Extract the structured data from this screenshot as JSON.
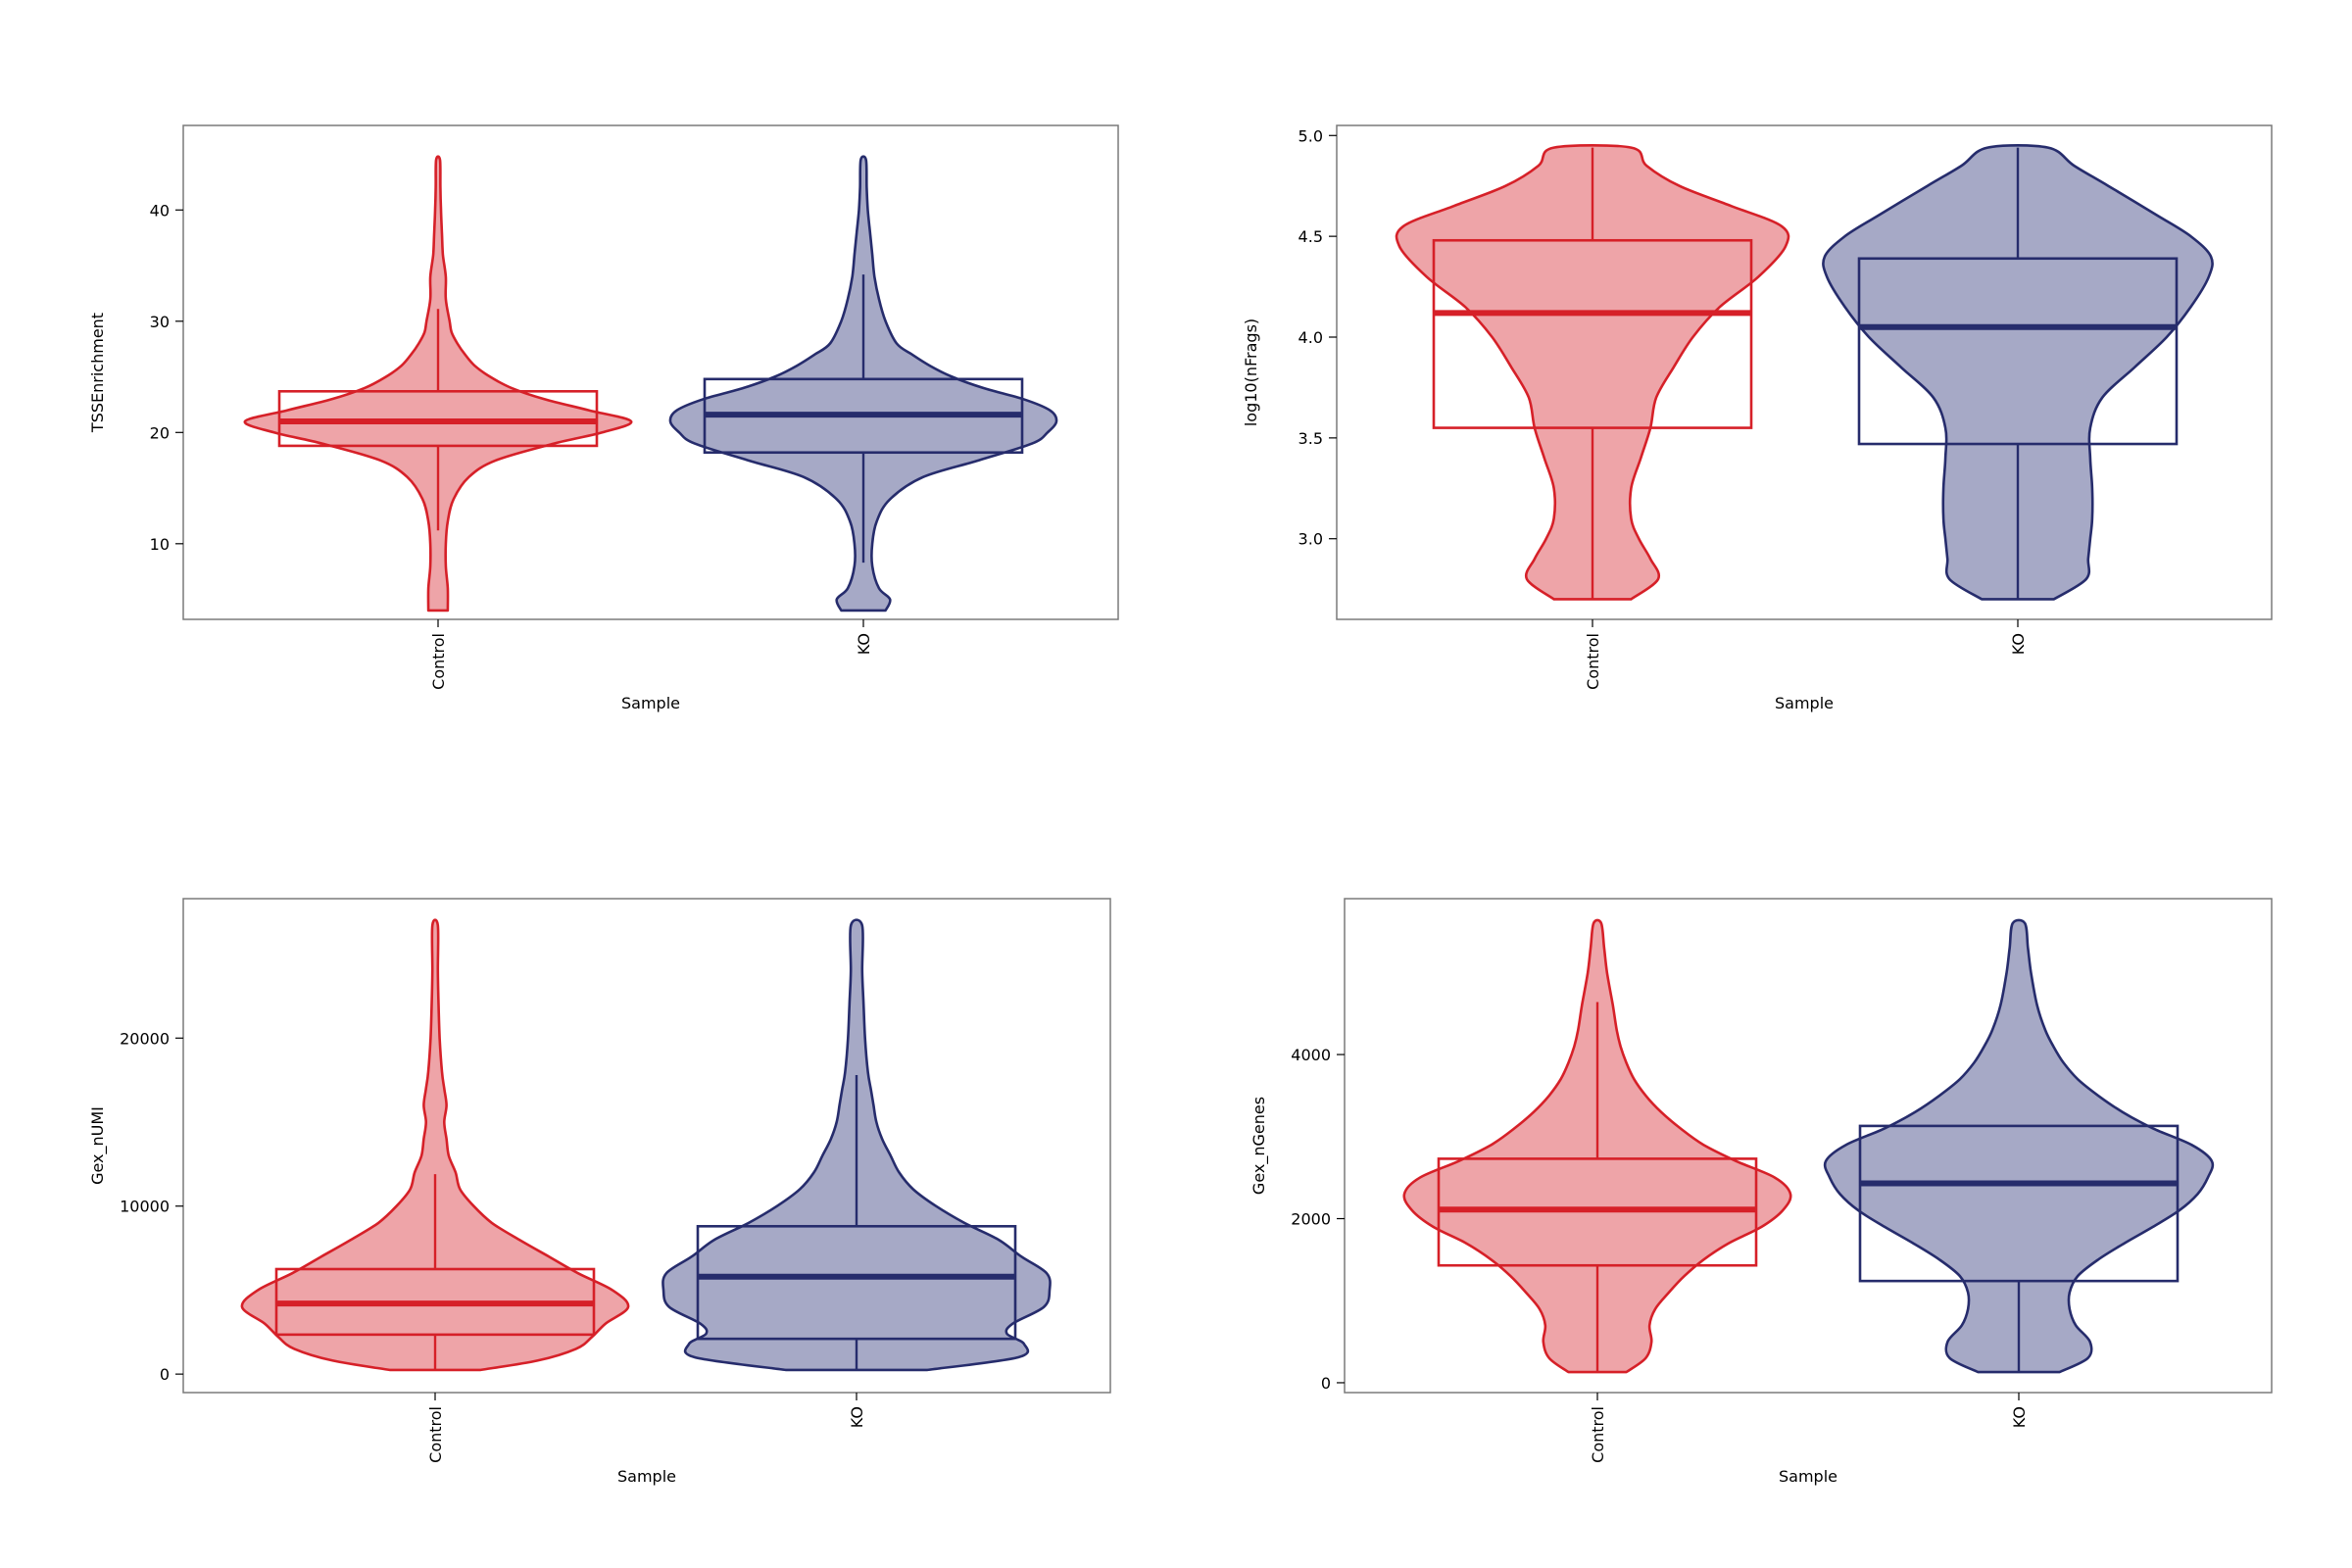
{
  "colors": {
    "Control": {
      "stroke": "#d62028",
      "fill": "#eea4a8"
    },
    "KO": {
      "stroke": "#262c6c",
      "fill": "#a6a9c6"
    },
    "frame": "#7a7a7a",
    "text": "#000000"
  },
  "chart_data": [
    {
      "type": "violin",
      "xlabel": "Sample",
      "ylabel": "TSSEnrichment",
      "categories": [
        "Control",
        "KO"
      ],
      "ylim": [
        3.2,
        47.6
      ],
      "yticks": [
        10,
        20,
        30,
        40
      ],
      "ytick_labels": [
        "10",
        "20",
        "30",
        "40"
      ],
      "grid": false,
      "series": [
        {
          "name": "Control",
          "q1": 18.8,
          "median": 21.0,
          "q3": 23.7,
          "whisker_low": 11.2,
          "whisker_high": 31.1,
          "density": [
            [
              4.0,
              0.05
            ],
            [
              6,
              0.05
            ],
            [
              8,
              0.04
            ],
            [
              10,
              0.04
            ],
            [
              12,
              0.05
            ],
            [
              14,
              0.08
            ],
            [
              16,
              0.16
            ],
            [
              17.5,
              0.3
            ],
            [
              19,
              0.6
            ],
            [
              20,
              0.85
            ],
            [
              21,
              1.0
            ],
            [
              22,
              0.78
            ],
            [
              23,
              0.55
            ],
            [
              24,
              0.38
            ],
            [
              25,
              0.27
            ],
            [
              26,
              0.19
            ],
            [
              27,
              0.14
            ],
            [
              28,
              0.1
            ],
            [
              29,
              0.07
            ],
            [
              30,
              0.06
            ],
            [
              32,
              0.04
            ],
            [
              34,
              0.04
            ],
            [
              36,
              0.025
            ],
            [
              38,
              0.02
            ],
            [
              40,
              0.015
            ],
            [
              42,
              0.012
            ],
            [
              44.5,
              0.01
            ]
          ]
        },
        {
          "name": "KO",
          "q1": 18.2,
          "median": 21.6,
          "q3": 24.8,
          "whisker_low": 8.3,
          "whisker_high": 34.2,
          "density": [
            [
              4.0,
              0.1
            ],
            [
              5,
              0.12
            ],
            [
              6,
              0.07
            ],
            [
              8,
              0.04
            ],
            [
              10,
              0.04
            ],
            [
              12,
              0.06
            ],
            [
              14,
              0.12
            ],
            [
              16,
              0.27
            ],
            [
              17.5,
              0.52
            ],
            [
              19,
              0.76
            ],
            [
              20,
              0.83
            ],
            [
              21,
              0.87
            ],
            [
              22,
              0.84
            ],
            [
              23,
              0.72
            ],
            [
              24,
              0.54
            ],
            [
              25,
              0.4
            ],
            [
              26,
              0.3
            ],
            [
              27,
              0.22
            ],
            [
              28,
              0.15
            ],
            [
              30,
              0.1
            ],
            [
              32,
              0.07
            ],
            [
              34,
              0.05
            ],
            [
              36,
              0.04
            ],
            [
              38,
              0.03
            ],
            [
              40,
              0.02
            ],
            [
              42,
              0.015
            ],
            [
              44.5,
              0.012
            ]
          ]
        }
      ]
    },
    {
      "type": "violin",
      "xlabel": "Sample",
      "ylabel": "log10(nFrags)",
      "categories": [
        "Control",
        "KO"
      ],
      "ylim": [
        2.6,
        5.05
      ],
      "yticks": [
        3.0,
        3.5,
        4.0,
        4.5,
        5.0
      ],
      "ytick_labels": [
        "3.0",
        "3.5",
        "4.0",
        "4.5",
        "5.0"
      ],
      "grid": false,
      "series": [
        {
          "name": "Control",
          "q1": 3.55,
          "median": 4.12,
          "q3": 4.48,
          "whisker_low": 2.7,
          "whisker_high": 4.94,
          "density": [
            [
              2.7,
              0.2
            ],
            [
              2.8,
              0.34
            ],
            [
              2.9,
              0.3
            ],
            [
              3.0,
              0.24
            ],
            [
              3.1,
              0.2
            ],
            [
              3.25,
              0.2
            ],
            [
              3.4,
              0.25
            ],
            [
              3.55,
              0.3
            ],
            [
              3.7,
              0.33
            ],
            [
              3.85,
              0.42
            ],
            [
              4.0,
              0.52
            ],
            [
              4.15,
              0.66
            ],
            [
              4.3,
              0.86
            ],
            [
              4.45,
              1.0
            ],
            [
              4.55,
              0.98
            ],
            [
              4.65,
              0.72
            ],
            [
              4.75,
              0.45
            ],
            [
              4.85,
              0.28
            ],
            [
              4.94,
              0.2
            ]
          ]
        },
        {
          "name": "KO",
          "q1": 3.47,
          "median": 4.05,
          "q3": 4.39,
          "whisker_low": 2.7,
          "whisker_high": 4.94,
          "density": [
            [
              2.7,
              0.18
            ],
            [
              2.8,
              0.34
            ],
            [
              2.9,
              0.35
            ],
            [
              3.0,
              0.36
            ],
            [
              3.1,
              0.37
            ],
            [
              3.25,
              0.37
            ],
            [
              3.4,
              0.36
            ],
            [
              3.55,
              0.36
            ],
            [
              3.7,
              0.42
            ],
            [
              3.85,
              0.58
            ],
            [
              4.0,
              0.74
            ],
            [
              4.15,
              0.86
            ],
            [
              4.3,
              0.95
            ],
            [
              4.4,
              0.96
            ],
            [
              4.5,
              0.86
            ],
            [
              4.6,
              0.7
            ],
            [
              4.75,
              0.45
            ],
            [
              4.85,
              0.28
            ],
            [
              4.94,
              0.15
            ]
          ]
        }
      ]
    },
    {
      "type": "violin",
      "xlabel": "Sample",
      "ylabel": "Gex_nUMI",
      "categories": [
        "Control",
        "KO"
      ],
      "ylim": [
        -1100,
        28300
      ],
      "yticks": [
        0,
        10000,
        20000
      ],
      "ytick_labels": [
        "0",
        "10000",
        "20000"
      ],
      "grid": false,
      "series": [
        {
          "name": "Control",
          "q1": 2350,
          "median": 4200,
          "q3": 6250,
          "whisker_low": 250,
          "whisker_high": 11900,
          "density": [
            [
              250,
              0.2
            ],
            [
              800,
              0.45
            ],
            [
              1500,
              0.62
            ],
            [
              2200,
              0.69
            ],
            [
              3000,
              0.75
            ],
            [
              4000,
              0.85
            ],
            [
              5000,
              0.78
            ],
            [
              6000,
              0.63
            ],
            [
              7000,
              0.5
            ],
            [
              8000,
              0.37
            ],
            [
              9000,
              0.25
            ],
            [
              10000,
              0.17
            ],
            [
              11000,
              0.11
            ],
            [
              12000,
              0.09
            ],
            [
              13000,
              0.06
            ],
            [
              14000,
              0.05
            ],
            [
              15000,
              0.04
            ],
            [
              16000,
              0.05
            ],
            [
              17000,
              0.04
            ],
            [
              18000,
              0.03
            ],
            [
              20000,
              0.02
            ],
            [
              22000,
              0.015
            ],
            [
              24000,
              0.012
            ],
            [
              26700,
              0.012
            ]
          ]
        },
        {
          "name": "KO",
          "q1": 2100,
          "median": 5800,
          "q3": 8800,
          "whisker_low": 250,
          "whisker_high": 17800,
          "density": [
            [
              250,
              0.25
            ],
            [
              1000,
              0.57
            ],
            [
              1800,
              0.59
            ],
            [
              2400,
              0.53
            ],
            [
              3000,
              0.55
            ],
            [
              4000,
              0.66
            ],
            [
              5000,
              0.68
            ],
            [
              6000,
              0.67
            ],
            [
              7000,
              0.58
            ],
            [
              8000,
              0.5
            ],
            [
              9000,
              0.38
            ],
            [
              10000,
              0.28
            ],
            [
              11000,
              0.2
            ],
            [
              12000,
              0.15
            ],
            [
              13000,
              0.12
            ],
            [
              14000,
              0.09
            ],
            [
              15000,
              0.07
            ],
            [
              16000,
              0.06
            ],
            [
              17000,
              0.05
            ],
            [
              18000,
              0.04
            ],
            [
              20000,
              0.03
            ],
            [
              22000,
              0.025
            ],
            [
              24000,
              0.02
            ],
            [
              26700,
              0.02
            ]
          ]
        }
      ]
    },
    {
      "type": "violin",
      "xlabel": "Sample",
      "ylabel": "Gex_nGenes",
      "categories": [
        "Control",
        "KO"
      ],
      "ylim": [
        -120,
        5900
      ],
      "yticks": [
        0,
        2000,
        4000
      ],
      "ytick_labels": [
        "0",
        "2000",
        "4000"
      ],
      "grid": false,
      "series": [
        {
          "name": "Control",
          "q1": 1430,
          "median": 2110,
          "q3": 2730,
          "whisker_low": 130,
          "whisker_high": 4640,
          "density": [
            [
              130,
              0.15
            ],
            [
              300,
              0.25
            ],
            [
              500,
              0.28
            ],
            [
              700,
              0.27
            ],
            [
              900,
              0.3
            ],
            [
              1100,
              0.37
            ],
            [
              1300,
              0.45
            ],
            [
              1500,
              0.55
            ],
            [
              1700,
              0.68
            ],
            [
              1900,
              0.85
            ],
            [
              2100,
              0.96
            ],
            [
              2300,
              1.0
            ],
            [
              2500,
              0.92
            ],
            [
              2700,
              0.72
            ],
            [
              2900,
              0.55
            ],
            [
              3100,
              0.43
            ],
            [
              3300,
              0.33
            ],
            [
              3500,
              0.25
            ],
            [
              3700,
              0.19
            ],
            [
              3900,
              0.15
            ],
            [
              4100,
              0.12
            ],
            [
              4300,
              0.1
            ],
            [
              4600,
              0.08
            ],
            [
              5000,
              0.05
            ],
            [
              5300,
              0.035
            ],
            [
              5600,
              0.02
            ]
          ]
        },
        {
          "name": "KO",
          "q1": 1240,
          "median": 2430,
          "q3": 3130,
          "whisker_low": 130,
          "whisker_high": 3130,
          "density": [
            [
              130,
              0.2
            ],
            [
              300,
              0.34
            ],
            [
              500,
              0.35
            ],
            [
              700,
              0.28
            ],
            [
              900,
              0.25
            ],
            [
              1100,
              0.25
            ],
            [
              1300,
              0.29
            ],
            [
              1500,
              0.39
            ],
            [
              1700,
              0.52
            ],
            [
              1900,
              0.66
            ],
            [
              2100,
              0.79
            ],
            [
              2300,
              0.88
            ],
            [
              2500,
              0.93
            ],
            [
              2700,
              0.95
            ],
            [
              2900,
              0.85
            ],
            [
              3100,
              0.66
            ],
            [
              3300,
              0.51
            ],
            [
              3500,
              0.39
            ],
            [
              3700,
              0.29
            ],
            [
              3900,
              0.22
            ],
            [
              4100,
              0.17
            ],
            [
              4300,
              0.13
            ],
            [
              4600,
              0.09
            ],
            [
              5000,
              0.06
            ],
            [
              5300,
              0.045
            ],
            [
              5600,
              0.03
            ]
          ]
        }
      ]
    }
  ]
}
